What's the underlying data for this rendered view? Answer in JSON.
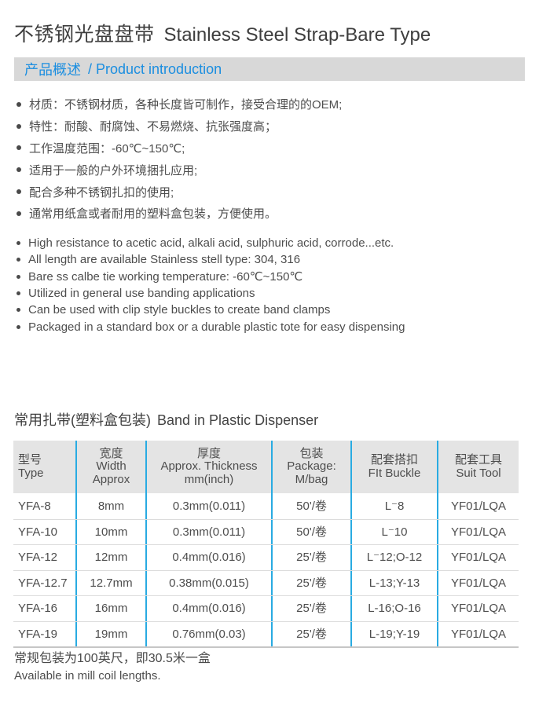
{
  "page": {
    "title_zh": "不锈钢光盘盘带",
    "title_en": "Stainless Steel Strap-Bare Type"
  },
  "intro": {
    "heading_zh": "产品概述",
    "heading_en": "/ Product introduction",
    "bullets_zh": [
      "材质：不锈钢材质，各种长度皆可制作，接受合理的的OEM;",
      "特性：耐酸、耐腐蚀、不易燃烧、抗张强度高；",
      "工作温度范围：-60℃~150℃;",
      "适用于一般的户外环境捆扎应用;",
      "配合多种不锈钢扎扣的使用;",
      "通常用纸盒或者耐用的塑料盒包装，方便使用。"
    ],
    "bullets_en": [
      "High resistance to acetic acid, alkali acid, sulphuric acid, corrode...etc.",
      "All length are available Stainless stell type: 304, 316",
      "Bare ss calbe tie working temperature: -60℃~150℃",
      "Utilized in general use banding applications",
      "Can be used with clip style buckles to create band clamps",
      "Packaged in a standard box or a durable plastic tote for easy dispensing"
    ]
  },
  "band": {
    "heading_zh": "常用扎带(塑料盒包装)",
    "heading_en": "Band in Plastic Dispenser",
    "table": {
      "headers": [
        "型号\nType",
        "宽度\nWidth\nApprox",
        "厚度\nApprox. Thickness\nmm(inch)",
        "包装\nPackage:\nM/bag",
        "配套搭扣\nFIt Buckle",
        "配套工具\nSuit Tool"
      ],
      "rows": [
        [
          "YFA-8",
          "8mm",
          "0.3mm(0.011)",
          "50'/卷",
          "L⁻8",
          "YF01/LQA"
        ],
        [
          "YFA-10",
          "10mm",
          "0.3mm(0.011)",
          "50'/卷",
          "L⁻10",
          "YF01/LQA"
        ],
        [
          "YFA-12",
          "12mm",
          "0.4mm(0.016)",
          "25'/卷",
          "L⁻12;O-12",
          "YF01/LQA"
        ],
        [
          "YFA-12.7",
          "12.7mm",
          "0.38mm(0.015)",
          "25'/卷",
          "L-13;Y-13",
          "YF01/LQA"
        ],
        [
          "YFA-16",
          "16mm",
          "0.4mm(0.016)",
          "25'/卷",
          "L-16;O-16",
          "YF01/LQA"
        ],
        [
          "YFA-19",
          "19mm",
          "0.76mm(0.03)",
          "25'/卷",
          "L-19;Y-19",
          "YF01/LQA"
        ]
      ]
    },
    "footnote_zh": "常规包装为100英尺，即30.5米一盒",
    "footnote_en": "Available in mill coil lengths."
  },
  "colors": {
    "accent_blue": "#1b8ee0",
    "divider_cyan": "#29abe2",
    "section_bar_bg": "#d8d8d8",
    "table_header_bg": "#e4e4e4"
  }
}
